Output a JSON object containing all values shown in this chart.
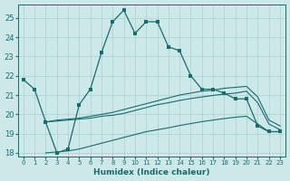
{
  "xlabel": "Humidex (Indice chaleur)",
  "ylabel": "",
  "bg_color": "#cde8e8",
  "grid_color": "#b0d4d4",
  "line_color": "#1a6b6b",
  "xlim": [
    -0.5,
    23.5
  ],
  "ylim": [
    17.8,
    25.7
  ],
  "yticks": [
    18,
    19,
    20,
    21,
    22,
    23,
    24,
    25
  ],
  "xticks": [
    0,
    1,
    2,
    3,
    4,
    5,
    6,
    7,
    8,
    9,
    10,
    11,
    12,
    13,
    14,
    15,
    16,
    17,
    18,
    19,
    20,
    21,
    22,
    23
  ],
  "series1_x": [
    0,
    1,
    2,
    3,
    4,
    5,
    6,
    7,
    8,
    9,
    10,
    11,
    12,
    13,
    14,
    15,
    16,
    17,
    18,
    19,
    20,
    21,
    22,
    23
  ],
  "series1_y": [
    21.8,
    21.3,
    19.6,
    18.0,
    18.2,
    20.5,
    21.3,
    23.2,
    24.8,
    25.4,
    24.2,
    24.8,
    24.8,
    23.5,
    23.3,
    22.0,
    21.3,
    21.3,
    21.1,
    20.8,
    20.8,
    19.4,
    19.1,
    19.1
  ],
  "series2_x": [
    2,
    3,
    4,
    5,
    6,
    7,
    8,
    9,
    10,
    11,
    12,
    13,
    14,
    15,
    16,
    17,
    18,
    19,
    20,
    21,
    22,
    23
  ],
  "series2_y": [
    19.6,
    19.7,
    19.75,
    19.8,
    19.9,
    20.0,
    20.1,
    20.25,
    20.4,
    20.55,
    20.7,
    20.85,
    21.0,
    21.1,
    21.2,
    21.25,
    21.35,
    21.4,
    21.45,
    20.9,
    19.7,
    19.4
  ],
  "series3_x": [
    2,
    3,
    4,
    5,
    6,
    7,
    8,
    9,
    10,
    11,
    12,
    13,
    14,
    15,
    16,
    17,
    18,
    19,
    20,
    21,
    22,
    23
  ],
  "series3_y": [
    19.6,
    19.65,
    19.7,
    19.75,
    19.8,
    19.9,
    19.95,
    20.05,
    20.2,
    20.35,
    20.5,
    20.6,
    20.72,
    20.82,
    20.9,
    20.98,
    21.05,
    21.1,
    21.2,
    20.6,
    19.5,
    19.2
  ],
  "series4_x": [
    2,
    3,
    4,
    5,
    6,
    7,
    8,
    9,
    10,
    11,
    12,
    13,
    14,
    15,
    16,
    17,
    18,
    19,
    20,
    21,
    22,
    23
  ],
  "series4_y": [
    18.0,
    18.05,
    18.1,
    18.2,
    18.35,
    18.5,
    18.65,
    18.8,
    18.95,
    19.1,
    19.2,
    19.3,
    19.42,
    19.52,
    19.62,
    19.7,
    19.78,
    19.85,
    19.9,
    19.5,
    19.1,
    19.1
  ]
}
